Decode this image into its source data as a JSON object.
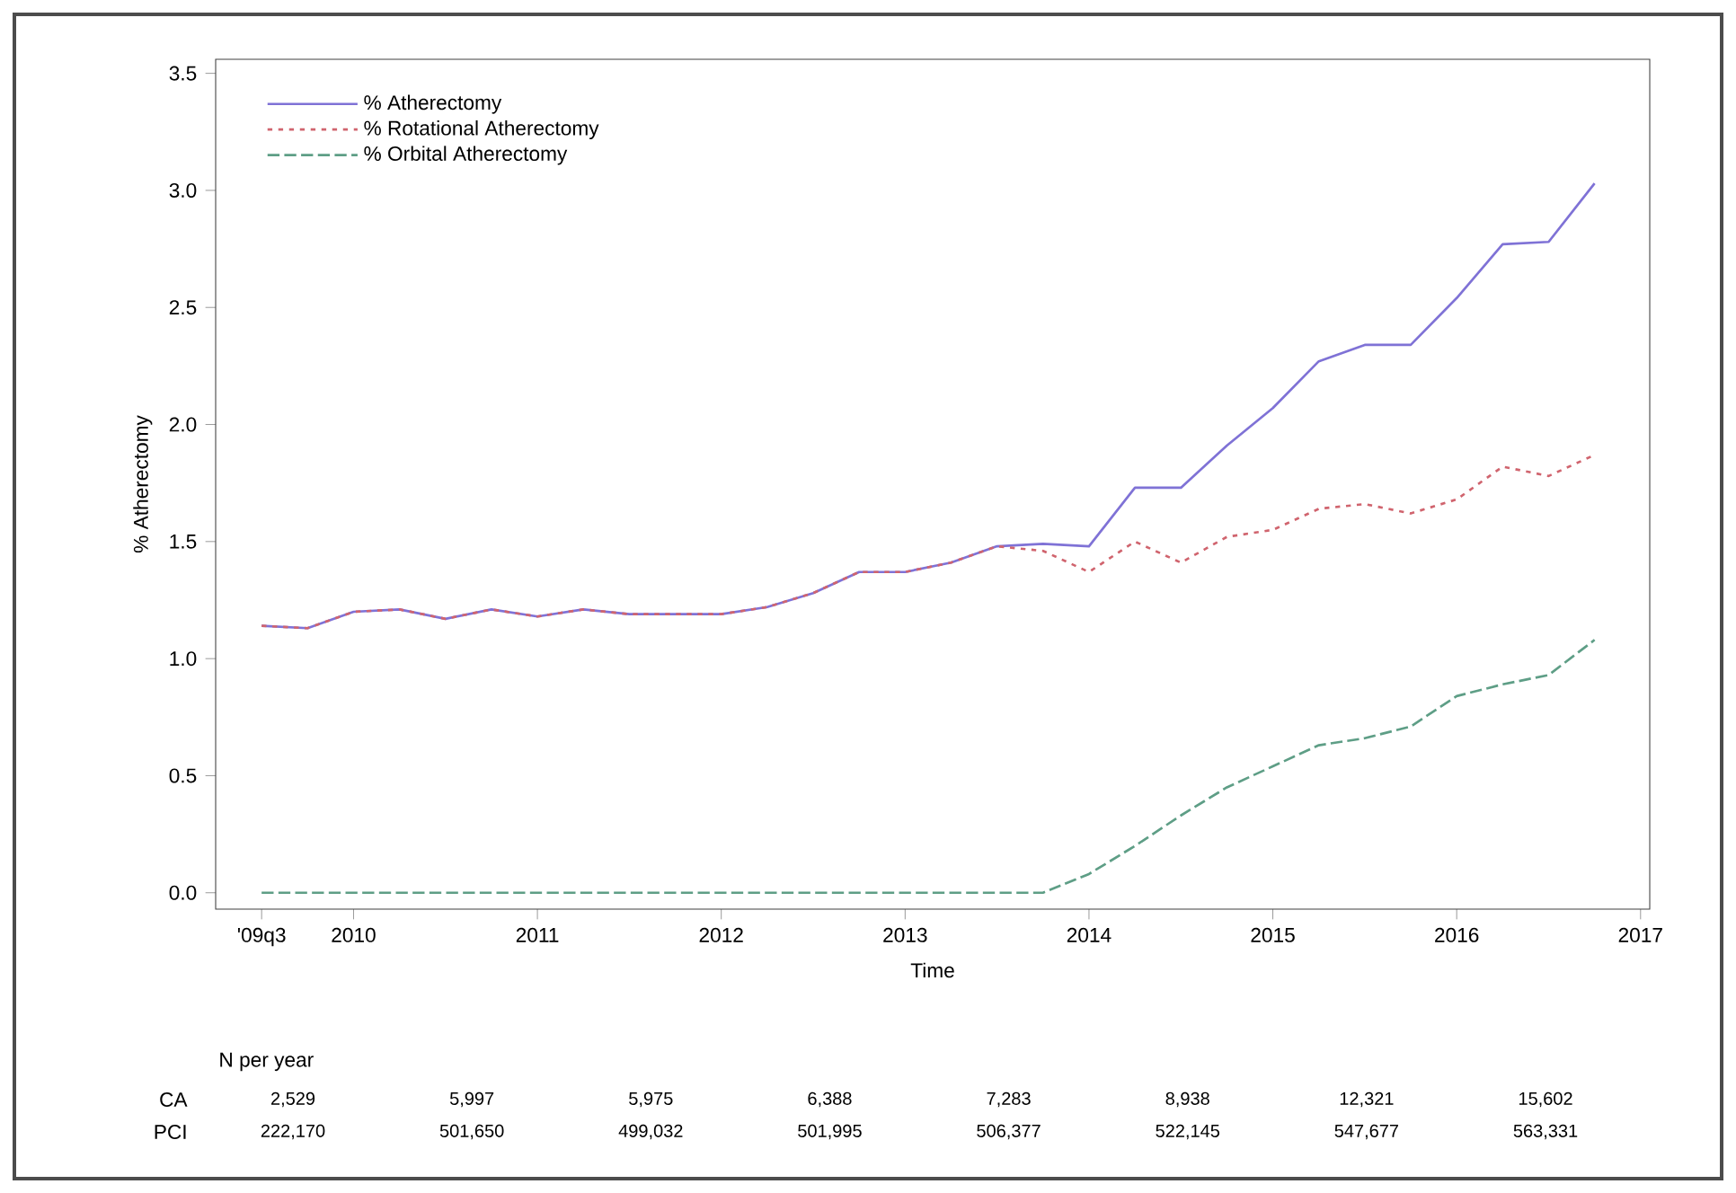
{
  "chart_data": {
    "type": "line",
    "xlabel": "Time",
    "ylabel": "% Atherectomy",
    "x": [
      2009.5,
      2009.75,
      2010,
      2010.25,
      2010.5,
      2010.75,
      2011,
      2011.25,
      2011.5,
      2011.75,
      2012,
      2012.25,
      2012.5,
      2012.75,
      2013,
      2013.25,
      2013.5,
      2013.75,
      2014,
      2014.25,
      2014.5,
      2014.75,
      2015,
      2015.25,
      2015.5,
      2015.75,
      2016,
      2016.25,
      2016.5,
      2016.75
    ],
    "series": [
      {
        "name": "% Atherectomy",
        "color": "#7f72d6",
        "line_style": "solid",
        "values": [
          1.14,
          1.13,
          1.2,
          1.21,
          1.17,
          1.21,
          1.18,
          1.21,
          1.19,
          1.19,
          1.19,
          1.22,
          1.28,
          1.37,
          1.37,
          1.41,
          1.48,
          1.49,
          1.48,
          1.73,
          1.73,
          1.91,
          2.07,
          2.27,
          2.34,
          2.34,
          2.54,
          2.77,
          2.78,
          3.03
        ]
      },
      {
        "name": "% Rotational Atherectomy",
        "color": "#d0646e",
        "line_style": "dotted",
        "values": [
          1.14,
          1.13,
          1.2,
          1.21,
          1.17,
          1.21,
          1.18,
          1.21,
          1.19,
          1.19,
          1.19,
          1.22,
          1.28,
          1.37,
          1.37,
          1.41,
          1.48,
          1.46,
          1.37,
          1.5,
          1.41,
          1.52,
          1.55,
          1.64,
          1.66,
          1.62,
          1.68,
          1.82,
          1.78,
          1.87
        ]
      },
      {
        "name": "% Orbital Atherectomy",
        "color": "#5e9e86",
        "line_style": "dashed",
        "values": [
          0,
          0,
          0,
          0,
          0,
          0,
          0,
          0,
          0,
          0,
          0,
          0,
          0,
          0,
          0,
          0,
          0,
          0,
          0.08,
          0.2,
          0.33,
          0.45,
          0.54,
          0.63,
          0.66,
          0.71,
          0.84,
          0.89,
          0.93,
          1.08
        ]
      }
    ],
    "xlim": [
      2009.25,
      2017.05
    ],
    "xticks": [
      {
        "value": 2009.5,
        "label": "'09q3"
      },
      2010,
      2011,
      2012,
      2013,
      2014,
      2015,
      2016,
      2017
    ],
    "ylim": [
      -0.07,
      3.56
    ],
    "yticks": [
      {
        "value": 0,
        "label": "0.0"
      },
      {
        "value": 0.5,
        "label": "0.5"
      },
      {
        "value": 1,
        "label": "1.0"
      },
      {
        "value": 1.5,
        "label": "1.5"
      },
      {
        "value": 2,
        "label": "2.0"
      },
      {
        "value": 2.5,
        "label": "2.5"
      },
      {
        "value": 3,
        "label": "3.0"
      },
      {
        "value": 3.5,
        "label": "3.5"
      }
    ],
    "grid": false,
    "legend": "top left",
    "annotations": [
      "N per year",
      "CA",
      "2,529",
      "5,997",
      "5,975",
      "6,388",
      "7,283",
      "8,938",
      "12,321",
      "15,602",
      "PCI",
      "222,170",
      "501,650",
      "499,032",
      "501,995",
      "506,377",
      "522,145",
      "547,677",
      "563,331"
    ]
  }
}
